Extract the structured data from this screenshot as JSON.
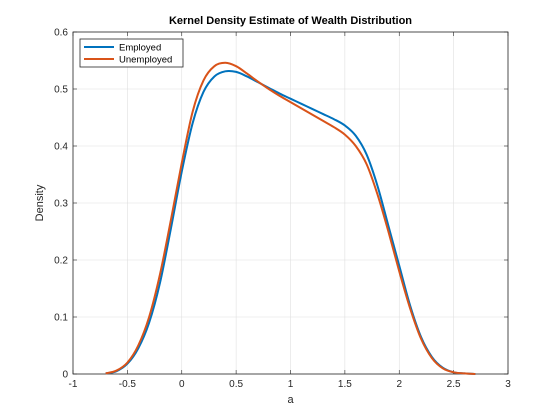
{
  "chart_data": {
    "type": "line",
    "title": "Kernel Density Estimate of Wealth Distribution",
    "xlabel": "a",
    "ylabel": "Density",
    "xlim": [
      -1,
      3
    ],
    "ylim": [
      0,
      0.6
    ],
    "xticks": [
      -1,
      -0.5,
      0,
      0.5,
      1,
      1.5,
      2,
      2.5,
      3
    ],
    "xtick_labels": [
      "-1",
      "-0.5",
      "0",
      "0.5",
      "1",
      "1.5",
      "2",
      "2.5",
      "3"
    ],
    "yticks": [
      0,
      0.1,
      0.2,
      0.3,
      0.4,
      0.5,
      0.6
    ],
    "ytick_labels": [
      "0",
      "0.1",
      "0.2",
      "0.3",
      "0.4",
      "0.5",
      "0.6"
    ],
    "grid": true,
    "legend_position": "top-left",
    "series": [
      {
        "name": "Employed",
        "color": "#0072BD",
        "x": [
          -0.7,
          -0.6,
          -0.5,
          -0.4,
          -0.3,
          -0.2,
          -0.1,
          0,
          0.1,
          0.2,
          0.3,
          0.4,
          0.5,
          0.6,
          0.7,
          0.8,
          0.9,
          1,
          1.1,
          1.2,
          1.3,
          1.4,
          1.5,
          1.6,
          1.7,
          1.8,
          1.9,
          2,
          2.1,
          2.2,
          2.3,
          2.4,
          2.5,
          2.6,
          2.7
        ],
        "y": [
          0.001,
          0.005,
          0.018,
          0.045,
          0.09,
          0.16,
          0.255,
          0.355,
          0.44,
          0.495,
          0.522,
          0.531,
          0.53,
          0.522,
          0.512,
          0.502,
          0.492,
          0.483,
          0.474,
          0.465,
          0.456,
          0.447,
          0.436,
          0.418,
          0.385,
          0.33,
          0.26,
          0.19,
          0.12,
          0.065,
          0.03,
          0.011,
          0.003,
          0.001,
          0.0
        ]
      },
      {
        "name": "Unemployed",
        "color": "#D95319",
        "x": [
          -0.7,
          -0.6,
          -0.5,
          -0.4,
          -0.3,
          -0.2,
          -0.1,
          0,
          0.1,
          0.2,
          0.3,
          0.4,
          0.5,
          0.6,
          0.7,
          0.8,
          0.9,
          1,
          1.1,
          1.2,
          1.3,
          1.4,
          1.5,
          1.6,
          1.7,
          1.8,
          1.9,
          2,
          2.1,
          2.2,
          2.3,
          2.4,
          2.5,
          2.6,
          2.7
        ],
        "y": [
          0.001,
          0.006,
          0.02,
          0.05,
          0.1,
          0.175,
          0.27,
          0.37,
          0.46,
          0.515,
          0.54,
          0.546,
          0.54,
          0.527,
          0.513,
          0.5,
          0.488,
          0.477,
          0.466,
          0.455,
          0.444,
          0.433,
          0.42,
          0.4,
          0.368,
          0.315,
          0.25,
          0.18,
          0.115,
          0.062,
          0.028,
          0.01,
          0.003,
          0.001,
          0.0
        ]
      }
    ]
  }
}
